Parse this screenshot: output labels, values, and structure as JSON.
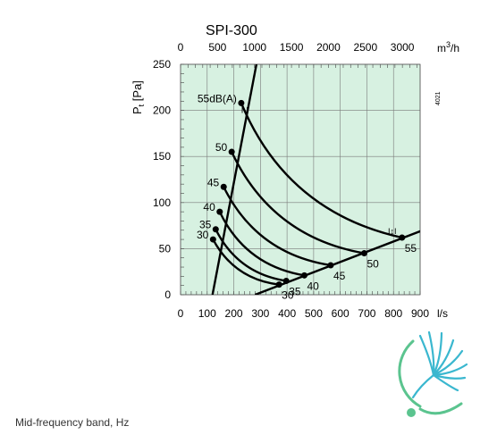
{
  "chart_data": {
    "type": "line",
    "title": "SPI-300",
    "plot_background": "#d7f1e1",
    "curve_color": "#000000",
    "ylabel": {
      "main": "P",
      "sub": "t",
      "unit": "[Pa]"
    },
    "ylim": [
      0,
      250
    ],
    "yticks": [
      "0",
      "50",
      "100",
      "150",
      "200",
      "250"
    ],
    "x_bottom": {
      "unit": "l/s",
      "lim": [
        0,
        900
      ],
      "ticks": [
        "0",
        "100",
        "200",
        "300",
        "400",
        "500",
        "600",
        "700",
        "800",
        "900"
      ]
    },
    "x_top": {
      "unit_base": "m",
      "unit_exp": "3",
      "unit_tail": "/h",
      "lim": [
        0,
        3240
      ],
      "ticks": [
        "0",
        "500",
        "1000",
        "1500",
        "2000",
        "2500",
        "3000"
      ]
    },
    "side_code": "4021",
    "series": [
      {
        "x": [
          120,
          285
        ],
        "y": [
          0,
          250
        ]
      },
      {
        "x": [
          280,
          910
        ],
        "y": [
          0,
          70
        ]
      }
    ],
    "sound_curves": [
      {
        "label": "55dB(A)",
        "start": [
          228,
          208
        ],
        "end": [
          832,
          62
        ],
        "end_label": "55"
      },
      {
        "label": "50",
        "start": [
          192,
          155
        ],
        "end": [
          690,
          45
        ],
        "end_label": "50"
      },
      {
        "label": "45",
        "start": [
          162,
          117
        ],
        "end": [
          564,
          32
        ],
        "end_label": "45"
      },
      {
        "label": "40",
        "start": [
          147,
          90
        ],
        "end": [
          465,
          21
        ],
        "end_label": "40"
      },
      {
        "label": "35",
        "start": [
          132,
          71
        ],
        "end": [
          397,
          15
        ],
        "end_label": "35"
      },
      {
        "label": "30",
        "start": [
          122,
          60
        ],
        "end": [
          370,
          11
        ],
        "end_label": "30"
      }
    ],
    "markers": [
      {
        "x": 241,
        "y": 197,
        "label": "I·I"
      },
      {
        "x": 795,
        "y": 66,
        "label": "I↕I"
      }
    ]
  },
  "logo": {
    "colors": [
      "#3ab7cf",
      "#5bc48f"
    ]
  },
  "footer": {
    "caption": "Mid-frequency band, Hz"
  }
}
